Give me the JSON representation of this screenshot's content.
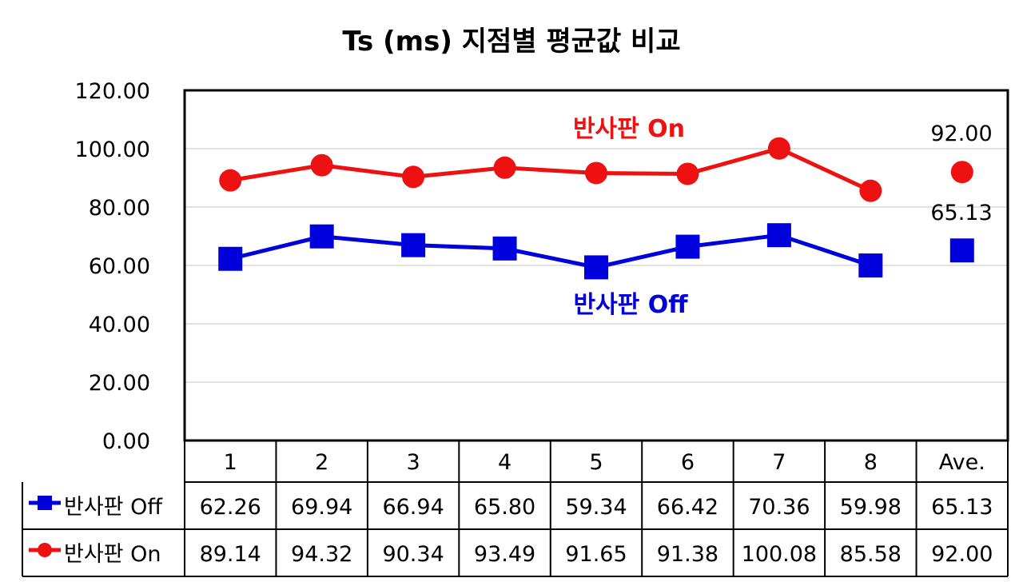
{
  "chart_data": {
    "type": "line",
    "title": "Ts (ms) 지점별 평균값 비교",
    "categories": [
      "1",
      "2",
      "3",
      "4",
      "5",
      "6",
      "7",
      "8",
      "Ave."
    ],
    "ylim": [
      0,
      120
    ],
    "yticks": [
      "0.00",
      "20.00",
      "40.00",
      "60.00",
      "80.00",
      "100.00",
      "120.00"
    ],
    "grid": true,
    "legend": "data-table",
    "series": [
      {
        "name": "반사판 Off",
        "color": "#0000dd",
        "marker": "square",
        "values": [
          62.26,
          69.94,
          66.94,
          65.8,
          59.34,
          66.42,
          70.36,
          59.98,
          65.13
        ],
        "labels": [
          "62.26",
          "69.94",
          "66.94",
          "65.80",
          "59.34",
          "66.42",
          "70.36",
          "59.98",
          "65.13"
        ],
        "annotation": "반사판 Off"
      },
      {
        "name": "반사판 On",
        "color": "#ee1111",
        "marker": "circle",
        "values": [
          89.14,
          94.32,
          90.34,
          93.49,
          91.65,
          91.38,
          100.08,
          85.58,
          92.0
        ],
        "labels": [
          "89.14",
          "94.32",
          "90.34",
          "93.49",
          "91.65",
          "91.38",
          "100.08",
          "85.58",
          "92.00"
        ],
        "annotation": "반사판 On"
      }
    ],
    "data_labels": {
      "on_ave": "92.00",
      "off_ave": "65.13"
    }
  }
}
